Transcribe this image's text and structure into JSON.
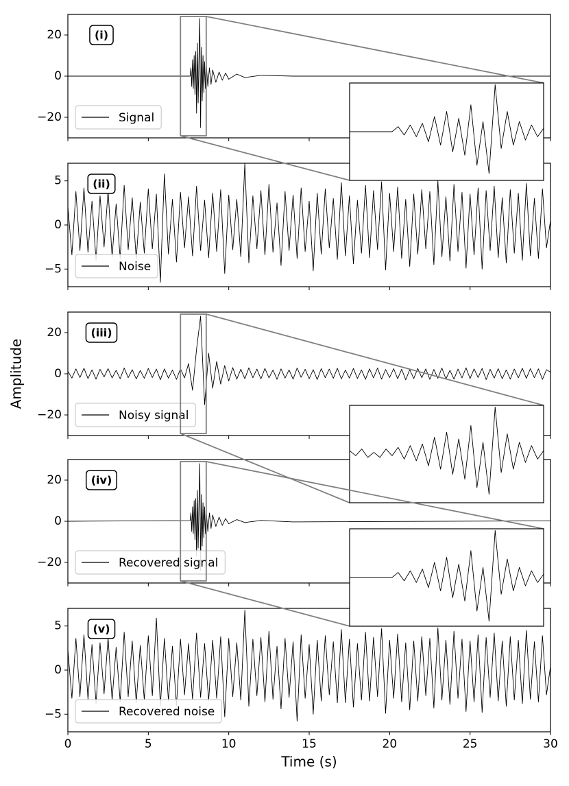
{
  "chart_data": [
    {
      "type": "line",
      "annotation": "(i)",
      "x": [
        0,
        7.6,
        7.65,
        7.7,
        7.75,
        7.8,
        7.85,
        7.9,
        7.95,
        8.0,
        8.05,
        8.1,
        8.15,
        8.2,
        8.25,
        8.3,
        8.35,
        8.4,
        8.45,
        8.5,
        8.55,
        8.6,
        8.7,
        8.8,
        8.9,
        9.0,
        9.2,
        9.4,
        9.6,
        9.8,
        10.0,
        10.5,
        11,
        12,
        14,
        30
      ],
      "series": [
        {
          "name": "Signal",
          "color": "#000000",
          "values": [
            0,
            0,
            4,
            -5,
            8,
            -6,
            10,
            -9,
            12,
            -18,
            16,
            -13,
            9,
            28,
            -25,
            14,
            -12,
            10,
            -8,
            7,
            -6,
            6,
            -5,
            4,
            -4,
            3,
            -3,
            2,
            -2,
            1.5,
            -1.5,
            1,
            -0.7,
            0.4,
            0,
            0
          ]
        }
      ],
      "ylim": [
        -30,
        30
      ],
      "yticks": [
        {
          "value": -20,
          "label": "−20"
        },
        0,
        20
      ],
      "inset": {
        "xlim": [
          7,
          8.6
        ],
        "ylim": [
          -29,
          29
        ],
        "x": [
          7.0,
          7.05,
          7.1,
          7.15,
          7.2,
          7.25,
          7.3,
          7.35,
          7.4,
          7.45,
          7.5,
          7.55,
          7.6,
          7.65,
          7.7,
          7.75,
          7.8,
          7.85,
          7.9,
          7.95,
          8.0,
          8.05,
          8.1,
          8.15,
          8.2,
          8.25,
          8.3,
          8.35,
          8.4,
          8.45,
          8.5,
          8.55,
          8.6
        ],
        "values": [
          0,
          0,
          0,
          0,
          0,
          0,
          0,
          0,
          3,
          -2,
          4,
          -3,
          5,
          -6,
          9,
          -8,
          12,
          -12,
          8,
          -14,
          16,
          -20,
          6,
          -25,
          28,
          -10,
          12,
          -8,
          6,
          -5,
          4,
          -3,
          2
        ]
      }
    },
    {
      "type": "line",
      "annotation": "(ii)",
      "x": [
        0,
        0.25,
        0.5,
        0.75,
        1,
        1.25,
        1.5,
        1.75,
        2,
        2.25,
        2.5,
        2.75,
        3,
        3.25,
        3.5,
        3.75,
        4,
        4.25,
        4.5,
        4.75,
        5,
        5.25,
        5.5,
        5.75,
        6,
        6.25,
        6.5,
        6.75,
        7,
        7.25,
        7.5,
        7.75,
        8,
        8.25,
        8.5,
        8.75,
        9,
        9.25,
        9.5,
        9.75,
        10,
        10.25,
        10.5,
        10.75,
        11,
        11.25,
        11.5,
        11.75,
        12,
        12.25,
        12.5,
        12.75,
        13,
        13.25,
        13.5,
        13.75,
        14,
        14.25,
        14.5,
        14.75,
        15,
        15.25,
        15.5,
        15.75,
        16,
        16.25,
        16.5,
        16.75,
        17,
        17.25,
        17.5,
        17.75,
        18,
        18.25,
        18.5,
        18.75,
        19,
        19.25,
        19.5,
        19.75,
        20,
        20.25,
        20.5,
        20.75,
        21,
        21.25,
        21.5,
        21.75,
        22,
        22.25,
        22.5,
        22.75,
        23,
        23.25,
        23.5,
        23.75,
        24,
        24.25,
        24.5,
        24.75,
        25,
        25.25,
        25.5,
        25.75,
        26,
        26.25,
        26.5,
        26.75,
        27,
        27.25,
        27.5,
        27.75,
        28,
        28.25,
        28.5,
        28.75,
        29,
        29.25,
        29.5,
        29.75,
        30
      ],
      "series": [
        {
          "name": "Noise",
          "color": "#000000",
          "values": [
            2.1,
            -3.4,
            3.8,
            -2.9,
            4.2,
            -3.1,
            2.7,
            -4.0,
            3.3,
            -2.5,
            3.9,
            -3.6,
            2.4,
            -3.8,
            4.5,
            -2.8,
            3.1,
            -3.9,
            2.6,
            -3.2,
            4.1,
            -2.7,
            3.5,
            -6.5,
            5.8,
            -3.3,
            2.9,
            -4.2,
            3.7,
            -2.6,
            3.2,
            -3.5,
            4.4,
            -2.9,
            2.8,
            -3.7,
            3.6,
            -3.0,
            4.0,
            -5.5,
            3.4,
            -2.8,
            2.9,
            -3.6,
            7.0,
            -4.3,
            3.3,
            -2.7,
            3.9,
            -3.4,
            4.6,
            -3.1,
            2.5,
            -4.6,
            3.8,
            -2.9,
            3.4,
            -3.8,
            4.2,
            -3.0,
            2.7,
            -5.2,
            3.6,
            -3.3,
            4.1,
            -2.6,
            3.0,
            -3.9,
            4.8,
            -3.5,
            3.3,
            -4.4,
            2.8,
            -3.2,
            4.5,
            -3.7,
            3.9,
            -2.8,
            4.9,
            -5.1,
            3.6,
            -3.0,
            4.3,
            -3.8,
            2.9,
            -4.7,
            3.5,
            -3.3,
            4.0,
            -2.7,
            3.8,
            -4.5,
            5.0,
            -3.6,
            3.2,
            -4.1,
            4.6,
            -3.0,
            3.7,
            -4.9,
            3.5,
            -3.4,
            4.2,
            -5.0,
            3.9,
            -2.9,
            4.4,
            -3.7,
            3.1,
            -4.3,
            4.0,
            -3.2,
            3.6,
            -4.0,
            4.7,
            -3.5,
            3.0,
            -3.8,
            4.1,
            -2.6,
            0.5
          ]
        }
      ],
      "ylim": [
        -7,
        7
      ],
      "yticks": [
        {
          "value": -5,
          "label": "−5"
        },
        0,
        5
      ]
    },
    {
      "type": "line",
      "annotation": "(iii)",
      "ylabel": "Amplitude",
      "x": [
        0,
        0.25,
        0.5,
        0.75,
        1,
        1.25,
        1.5,
        1.75,
        2,
        2.25,
        2.5,
        2.75,
        3,
        3.25,
        3.5,
        3.75,
        4,
        4.25,
        4.5,
        4.75,
        5,
        5.25,
        5.5,
        5.75,
        6,
        6.25,
        6.5,
        6.75,
        7,
        7.25,
        7.5,
        7.75,
        8,
        8.25,
        8.5,
        8.75,
        9,
        9.25,
        9.5,
        9.75,
        10,
        10.25,
        10.5,
        10.75,
        11,
        11.25,
        11.5,
        11.75,
        12,
        12.25,
        12.5,
        12.75,
        13,
        13.25,
        13.5,
        13.75,
        14,
        14.25,
        14.5,
        14.75,
        15,
        15.25,
        15.5,
        15.75,
        16,
        16.25,
        16.5,
        16.75,
        17,
        17.25,
        17.5,
        17.75,
        18,
        18.25,
        18.5,
        18.75,
        19,
        19.25,
        19.5,
        19.75,
        20,
        20.25,
        20.5,
        20.75,
        21,
        21.25,
        21.5,
        21.75,
        22,
        22.25,
        22.5,
        22.75,
        23,
        23.25,
        23.5,
        23.75,
        24,
        24.25,
        24.5,
        24.75,
        25,
        25.25,
        25.5,
        25.75,
        26,
        26.25,
        26.5,
        26.75,
        27,
        27.25,
        27.5,
        27.75,
        28,
        28.25,
        28.5,
        28.75,
        29,
        29.25,
        29.5,
        29.75,
        30
      ],
      "series": [
        {
          "name": "Noisy signal",
          "color": "#000000",
          "values": [
            1.2,
            -2.1,
            2.4,
            -1.8,
            2.7,
            -2.3,
            1.9,
            -2.6,
            2.2,
            -1.5,
            2.5,
            -2.0,
            1.7,
            -2.4,
            2.8,
            -1.9,
            2.0,
            -2.5,
            1.6,
            -2.2,
            2.6,
            -1.8,
            2.3,
            -2.9,
            2.4,
            -2.1,
            1.8,
            -2.7,
            2.5,
            -2.0,
            5,
            -8,
            12,
            28,
            -15,
            10,
            -7,
            6,
            -5,
            4,
            -3.5,
            3.0,
            -2.6,
            2.2,
            -2.4,
            2.9,
            -1.9,
            2.3,
            -2.5,
            2.6,
            -2.0,
            1.8,
            -2.7,
            2.4,
            -2.1,
            1.9,
            -2.6,
            2.8,
            -1.7,
            2.2,
            -2.4,
            2.0,
            -2.8,
            2.5,
            -1.9,
            2.3,
            -2.2,
            2.7,
            -2.5,
            1.8,
            -2.1,
            2.6,
            -2.3,
            1.9,
            -2.7,
            2.4,
            -2.0,
            2.8,
            -2.6,
            2.1,
            -1.8,
            2.5,
            -2.4,
            2.2,
            -2.9,
            2.0,
            -2.3,
            2.6,
            -1.9,
            2.4,
            -2.7,
            2.1,
            -2.2,
            2.8,
            -2.5,
            1.7,
            -2.6,
            2.3,
            -2.0,
            2.9,
            -2.3,
            2.4,
            -1.8,
            2.6,
            -2.8,
            2.2,
            -2.1,
            2.5,
            -2.4,
            1.9,
            -2.6,
            2.3,
            -2.0,
            2.7,
            -2.2,
            2.5,
            -1.9,
            2.4,
            -2.7,
            2.0,
            0.8
          ]
        }
      ],
      "ylim": [
        -30,
        30
      ],
      "yticks": [
        {
          "value": -20,
          "label": "−20"
        },
        0,
        20
      ],
      "inset": {
        "xlim": [
          7,
          8.6
        ],
        "ylim": [
          -29,
          29
        ],
        "x": [
          7.0,
          7.05,
          7.1,
          7.15,
          7.2,
          7.25,
          7.3,
          7.35,
          7.4,
          7.45,
          7.5,
          7.55,
          7.6,
          7.65,
          7.7,
          7.75,
          7.8,
          7.85,
          7.9,
          7.95,
          8.0,
          8.05,
          8.1,
          8.15,
          8.2,
          8.25,
          8.3,
          8.35,
          8.4,
          8.45,
          8.5,
          8.55,
          8.6
        ],
        "values": [
          2,
          -1,
          3,
          -2,
          1,
          -2,
          3,
          -1,
          4,
          -3,
          5,
          -4,
          6,
          -7,
          10,
          -9,
          13,
          -12,
          9,
          -15,
          17,
          -20,
          7,
          -24,
          28,
          -11,
          12,
          -9,
          7,
          -5,
          5,
          -3,
          2
        ]
      }
    },
    {
      "type": "line",
      "annotation": "(iv)",
      "x": [
        0,
        7.6,
        7.65,
        7.7,
        7.75,
        7.8,
        7.85,
        7.9,
        7.95,
        8.0,
        8.05,
        8.1,
        8.15,
        8.2,
        8.25,
        8.3,
        8.35,
        8.4,
        8.45,
        8.5,
        8.55,
        8.6,
        8.7,
        8.8,
        8.9,
        9.0,
        9.2,
        9.4,
        9.6,
        9.8,
        10.0,
        10.5,
        11,
        12,
        14,
        30
      ],
      "series": [
        {
          "name": "Recovered signal",
          "color": "#000000",
          "values": [
            0,
            0.3,
            4,
            -5,
            7,
            -6,
            10,
            -9,
            11,
            -17,
            15,
            -13,
            9,
            28,
            -24,
            13,
            -12,
            9,
            -8,
            7,
            -6,
            5,
            -5,
            4,
            -3.5,
            3,
            -2.5,
            2,
            -2,
            1.3,
            -1.2,
            0.8,
            -0.6,
            0.4,
            -0.3,
            0.2
          ]
        }
      ],
      "ylim": [
        -30,
        30
      ],
      "yticks": [
        {
          "value": -20,
          "label": "−20"
        },
        0,
        20
      ],
      "inset": {
        "xlim": [
          7,
          8.6
        ],
        "ylim": [
          -29,
          29
        ],
        "x": [
          7.0,
          7.05,
          7.1,
          7.15,
          7.2,
          7.25,
          7.3,
          7.35,
          7.4,
          7.45,
          7.5,
          7.55,
          7.6,
          7.65,
          7.7,
          7.75,
          7.8,
          7.85,
          7.9,
          7.95,
          8.0,
          8.05,
          8.1,
          8.15,
          8.2,
          8.25,
          8.3,
          8.35,
          8.4,
          8.45,
          8.5,
          8.55,
          8.6
        ],
        "values": [
          0,
          0,
          0,
          0,
          0,
          0,
          0,
          0,
          3,
          -2,
          4,
          -3,
          5,
          -6,
          9,
          -8,
          12,
          -12,
          8,
          -14,
          16,
          -20,
          6,
          -26,
          28,
          -10,
          11,
          -8,
          6,
          -5,
          4,
          -3,
          2
        ]
      }
    },
    {
      "type": "line",
      "annotation": "(v)",
      "xlabel": "Time (s)",
      "x": [
        0,
        0.25,
        0.5,
        0.75,
        1,
        1.25,
        1.5,
        1.75,
        2,
        2.25,
        2.5,
        2.75,
        3,
        3.25,
        3.5,
        3.75,
        4,
        4.25,
        4.5,
        4.75,
        5,
        5.25,
        5.5,
        5.75,
        6,
        6.25,
        6.5,
        6.75,
        7,
        7.25,
        7.5,
        7.75,
        8,
        8.25,
        8.5,
        8.75,
        9,
        9.25,
        9.5,
        9.75,
        10,
        10.25,
        10.5,
        10.75,
        11,
        11.25,
        11.5,
        11.75,
        12,
        12.25,
        12.5,
        12.75,
        13,
        13.25,
        13.5,
        13.75,
        14,
        14.25,
        14.5,
        14.75,
        15,
        15.25,
        15.5,
        15.75,
        16,
        16.25,
        16.5,
        16.75,
        17,
        17.25,
        17.5,
        17.75,
        18,
        18.25,
        18.5,
        18.75,
        19,
        19.25,
        19.5,
        19.75,
        20,
        20.25,
        20.5,
        20.75,
        21,
        21.25,
        21.5,
        21.75,
        22,
        22.25,
        22.5,
        22.75,
        23,
        23.25,
        23.5,
        23.75,
        24,
        24.25,
        24.5,
        24.75,
        25,
        25.25,
        25.5,
        25.75,
        26,
        26.25,
        26.5,
        26.75,
        27,
        27.25,
        27.5,
        27.75,
        28,
        28.25,
        28.5,
        28.75,
        29,
        29.25,
        29.5,
        29.75,
        30
      ],
      "series": [
        {
          "name": "Recovered noise",
          "color": "#000000",
          "values": [
            2.3,
            -3.2,
            3.6,
            -3.0,
            4.0,
            -3.3,
            2.9,
            -3.8,
            3.1,
            -2.7,
            3.7,
            -3.4,
            2.6,
            -3.6,
            4.3,
            -3.0,
            3.3,
            -3.7,
            2.8,
            -3.4,
            3.9,
            -2.9,
            5.9,
            -4.1,
            3.6,
            -3.5,
            2.7,
            -4.0,
            3.5,
            -2.8,
            3.0,
            -3.3,
            4.2,
            -3.1,
            3.0,
            -3.5,
            3.4,
            -3.2,
            3.8,
            -5.3,
            3.6,
            -3.0,
            3.1,
            -3.4,
            6.8,
            -4.1,
            3.5,
            -2.9,
            3.7,
            -3.6,
            4.4,
            -3.3,
            2.7,
            -4.4,
            3.6,
            -3.1,
            3.2,
            -5.8,
            4.0,
            -3.2,
            2.9,
            -5.0,
            3.4,
            -3.5,
            3.9,
            -2.8,
            3.2,
            -3.7,
            4.6,
            -3.7,
            3.5,
            -4.2,
            3.0,
            -3.4,
            4.3,
            -3.5,
            3.7,
            -3.0,
            4.7,
            -4.9,
            3.4,
            -3.2,
            4.1,
            -3.6,
            3.1,
            -4.5,
            3.3,
            -3.5,
            3.8,
            -2.9,
            3.6,
            -4.3,
            4.8,
            -3.4,
            3.4,
            -3.9,
            4.4,
            -3.2,
            3.5,
            -4.7,
            3.3,
            -3.6,
            4.0,
            -4.8,
            3.7,
            -3.1,
            4.2,
            -3.5,
            3.3,
            -4.1,
            3.8,
            -3.4,
            3.4,
            -3.8,
            4.5,
            -3.3,
            3.2,
            -3.6,
            3.9,
            -2.8,
            0.4
          ]
        }
      ],
      "ylim": [
        -7,
        7
      ],
      "yticks": [
        {
          "value": -5,
          "label": "−5"
        },
        0,
        5
      ],
      "xlim": [
        0,
        30
      ],
      "xticks": [
        0,
        5,
        10,
        15,
        20,
        25,
        30
      ]
    }
  ]
}
